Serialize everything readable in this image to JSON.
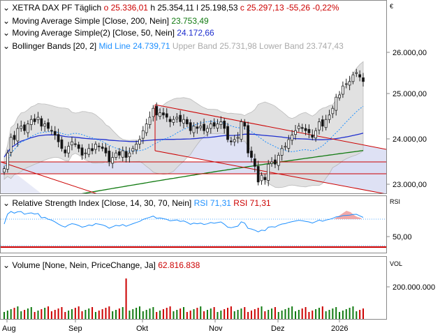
{
  "header": {
    "name": "XETRA DAX PF",
    "interval": "Täglich",
    "open": "o 25.336,01",
    "high": "h 25.354,11",
    "low": "l 25.198,53",
    "close": "c 25.297,13",
    "change": "-55,26",
    "change_pct": "-0,22%",
    "currency_symbol": "€"
  },
  "legends": {
    "ma200": {
      "label": "Moving Average Simple [Close, 200, Nein]",
      "value": "23.753,49",
      "color": "#117a11"
    },
    "ma50": {
      "label": "Moving Average Simple(2) [Close, 50, Nein]",
      "value": "24.172,66",
      "color": "#1f2fcf"
    },
    "bb": {
      "label": "Bollinger Bands [20, 2]",
      "mid_label": "Mid Line",
      "mid_value": "24.739,71",
      "upper_label": "Upper Band",
      "upper_value": "25.731,98",
      "lower_label": "Lower Band",
      "lower_value": "23.747,43",
      "mid_color": "#1e90ff"
    },
    "rsi": {
      "label": "Relative Strength Index [Close, 14, 30, 70, Nein]",
      "rsi_label1": "RSI",
      "rsi_value1": "71,31",
      "rsi_label2": "RSI",
      "rsi_value2": "71,31",
      "color1": "#1e90ff",
      "color2": "#cc0000"
    },
    "volume": {
      "label": "Volume [None, Nein, PriceChange, Ja]",
      "value": "62.816.838",
      "color": "#cc0000"
    }
  },
  "axes": {
    "price_ticks": [
      "26.000,00",
      "25.000,00",
      "24.000,00",
      "23.000,00"
    ],
    "rsi_label": "RSI",
    "rsi_tick": "50,00",
    "vol_label": "VOL",
    "vol_tick": "200.000.000",
    "months": [
      "Aug",
      "Sep",
      "Okt",
      "Nov",
      "Dez",
      "2026"
    ]
  },
  "colors": {
    "up": "#117a11",
    "down": "#cc0000",
    "trend": "#cc0000",
    "bb_fill": "#dcdcdc",
    "channel_fill": "#d8dcf2"
  },
  "chart_data": {
    "type": "candlestick",
    "price_ylim": [
      22800,
      26300
    ],
    "rsi_ylim": [
      0,
      100
    ],
    "closes": [
      23350,
      23700,
      24050,
      24000,
      24250,
      24300,
      24200,
      24350,
      24450,
      24400,
      24500,
      24300,
      24350,
      24250,
      24200,
      24100,
      23950,
      23800,
      23700,
      23850,
      23950,
      23900,
      23800,
      23650,
      23700,
      23800,
      23750,
      23900,
      23850,
      23800,
      23700,
      23500,
      23600,
      23700,
      23650,
      23750,
      23600,
      23700,
      23800,
      23900,
      24000,
      24200,
      24350,
      24500,
      24700,
      24550,
      24600,
      24550,
      24500,
      24400,
      24450,
      24500,
      24400,
      24450,
      24350,
      24200,
      24300,
      24250,
      24300,
      24200,
      24250,
      24350,
      24300,
      24350,
      24400,
      24250,
      24000,
      23950,
      24000,
      24050,
      24400,
      24300,
      23700,
      23600,
      23400,
      23050,
      23200,
      23100,
      23450,
      23500,
      23450,
      23650,
      23800,
      23850,
      24000,
      24100,
      24200,
      24300,
      24250,
      24200,
      24150,
      24050,
      24200,
      24400,
      24300,
      24450,
      24550,
      24700,
      24950,
      25000,
      25200,
      25250,
      25300,
      25450,
      25500,
      25400,
      25300
    ]
  }
}
